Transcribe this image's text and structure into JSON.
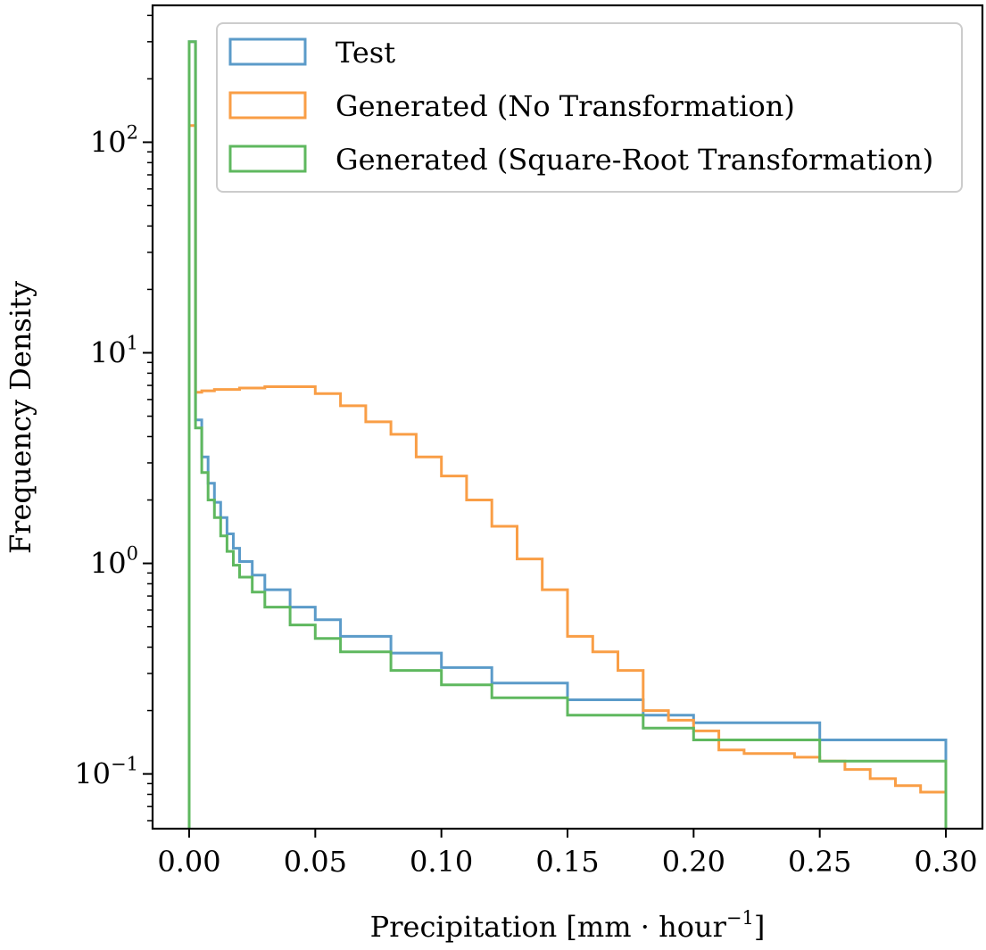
{
  "chart_data": {
    "type": "histogram-step",
    "xlabel_main": "Precipitation [mm · hour",
    "xlabel_sup": "−1",
    "xlabel_close": "]",
    "ylabel": "Frequency Density",
    "xlim": [
      -0.0145,
      0.3145
    ],
    "ylim_log10": [
      -1.26,
      2.65
    ],
    "yscale": "log",
    "grid": false,
    "legend_position": "top-right",
    "x_ticks": [
      0.0,
      0.05,
      0.1,
      0.15,
      0.2,
      0.25,
      0.3
    ],
    "x_tick_labels": [
      "0.00",
      "0.05",
      "0.10",
      "0.15",
      "0.20",
      "0.25",
      "0.30"
    ],
    "y_major_ticks": [
      {
        "exp": 2,
        "base": "10",
        "sup": "2"
      },
      {
        "exp": 1,
        "base": "10",
        "sup": "1"
      },
      {
        "exp": 0,
        "base": "10",
        "sup": "0"
      },
      {
        "exp": -1,
        "base": "10",
        "sup": "−1"
      }
    ],
    "series": [
      {
        "name": "Test",
        "color": "#5b9bc9",
        "x": [
          0.0,
          0.0025,
          0.005,
          0.0075,
          0.01,
          0.0125,
          0.015,
          0.0175,
          0.02,
          0.025,
          0.03,
          0.04,
          0.05,
          0.06,
          0.08,
          0.1,
          0.12,
          0.15,
          0.18,
          0.2,
          0.25,
          0.3
        ],
        "y": [
          300,
          4.8,
          3.2,
          2.4,
          1.95,
          1.65,
          1.38,
          1.18,
          1.02,
          0.88,
          0.75,
          0.62,
          0.54,
          0.45,
          0.375,
          0.32,
          0.27,
          0.225,
          0.19,
          0.175,
          0.145,
          0.12
        ]
      },
      {
        "name": "Generated (No Transformation)",
        "color": "#f99e46",
        "x": [
          0.0,
          0.0025,
          0.005,
          0.01,
          0.02,
          0.03,
          0.04,
          0.05,
          0.06,
          0.07,
          0.08,
          0.09,
          0.1,
          0.11,
          0.12,
          0.13,
          0.14,
          0.15,
          0.16,
          0.17,
          0.18,
          0.19,
          0.2,
          0.21,
          0.22,
          0.23,
          0.24,
          0.25,
          0.26,
          0.27,
          0.28,
          0.29,
          0.3
        ],
        "y": [
          120,
          6.5,
          6.6,
          6.7,
          6.8,
          6.9,
          6.9,
          6.4,
          5.6,
          4.7,
          4.1,
          3.2,
          2.6,
          2.0,
          1.5,
          1.05,
          0.75,
          0.45,
          0.38,
          0.31,
          0.2,
          0.18,
          0.16,
          0.13,
          0.125,
          0.125,
          0.12,
          0.115,
          0.105,
          0.095,
          0.088,
          0.082,
          0.08
        ]
      },
      {
        "name": "Generated (Square-Root Transformation)",
        "color": "#5fb85f",
        "x": [
          0.0,
          0.0025,
          0.005,
          0.0075,
          0.01,
          0.0125,
          0.015,
          0.0175,
          0.02,
          0.025,
          0.03,
          0.04,
          0.05,
          0.06,
          0.08,
          0.1,
          0.12,
          0.15,
          0.18,
          0.2,
          0.25,
          0.3
        ],
        "y": [
          300,
          4.4,
          2.7,
          2.0,
          1.65,
          1.35,
          1.14,
          0.98,
          0.86,
          0.73,
          0.62,
          0.51,
          0.44,
          0.38,
          0.31,
          0.265,
          0.23,
          0.19,
          0.165,
          0.145,
          0.115,
          0.095
        ]
      }
    ]
  }
}
